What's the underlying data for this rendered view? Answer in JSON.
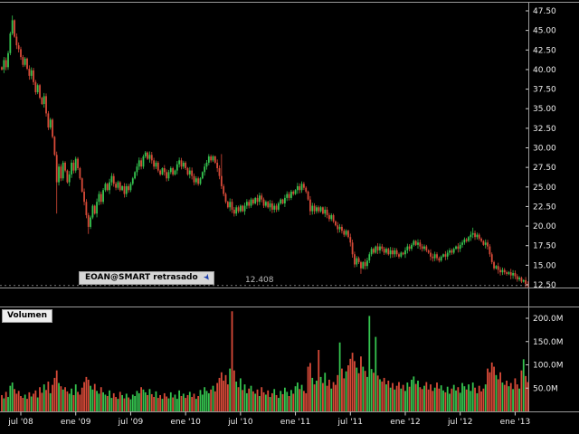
{
  "instrument": {
    "label": "EOAN@SMART retrasado"
  },
  "price_flag": {
    "value": "12.408"
  },
  "volume_panel": {
    "title": "Volumen"
  },
  "chart_data": {
    "type": "candlestick",
    "title": "EOAN@SMART retrasado",
    "subtitle_status": "retrasado",
    "last_price": 12.408,
    "open_first": 40.3,
    "legend_position": "bottom-left-of-price-panel",
    "grid": false,
    "price_axis": {
      "side": "right",
      "ticks": [
        47.5,
        45.0,
        42.5,
        40.0,
        37.5,
        35.0,
        32.5,
        30.0,
        27.5,
        25.0,
        22.5,
        20.0,
        17.5,
        15.0,
        12.5
      ],
      "range": [
        11.9,
        48.9
      ]
    },
    "volume_axis": {
      "side": "right",
      "ticks_millions": [
        200,
        150,
        100,
        50
      ],
      "range_millions": [
        0,
        220
      ]
    },
    "x_axis": {
      "ticks": [
        {
          "label": "jul '08",
          "week": 9
        },
        {
          "label": "ene '09",
          "week": 35
        },
        {
          "label": "jul '09",
          "week": 61
        },
        {
          "label": "ene '10",
          "week": 87
        },
        {
          "label": "jul '10",
          "week": 113
        },
        {
          "label": "ene '11",
          "week": 139
        },
        {
          "label": "jul '11",
          "week": 165
        },
        {
          "label": "ene '12",
          "week": 191
        },
        {
          "label": "jul '12",
          "week": 217
        },
        {
          "label": "ene '13",
          "week": 243
        }
      ]
    },
    "extremes": [
      {
        "week": 5,
        "high": 46.9
      },
      {
        "week": 26,
        "low": 21.6
      },
      {
        "week": 41,
        "low": 19.0
      },
      {
        "week": 104,
        "high": 29.2
      },
      {
        "week": 170,
        "low": 13.9
      },
      {
        "week": 223,
        "high": 19.8
      },
      {
        "week": 249,
        "low": 12.408
      }
    ],
    "weekly_closes": [
      40.0,
      41.2,
      40.3,
      42.1,
      44.6,
      46.3,
      44.2,
      43.1,
      42.6,
      41.6,
      40.6,
      41.4,
      40.1,
      39.2,
      39.9,
      38.4,
      37.1,
      38.0,
      36.4,
      35.6,
      36.6,
      34.4,
      32.6,
      33.6,
      31.4,
      29.1,
      25.6,
      27.6,
      26.1,
      28.1,
      27.1,
      25.6,
      26.6,
      28.1,
      27.1,
      28.6,
      27.4,
      26.1,
      24.4,
      23.1,
      21.4,
      19.9,
      21.1,
      22.6,
      21.6,
      23.1,
      24.1,
      23.1,
      24.6,
      25.4,
      24.6,
      25.6,
      26.4,
      25.4,
      24.9,
      25.6,
      24.6,
      25.1,
      24.1,
      25.1,
      24.6,
      25.4,
      26.1,
      26.9,
      27.6,
      28.4,
      27.6,
      28.9,
      29.4,
      28.6,
      29.1,
      28.4,
      27.6,
      28.1,
      27.1,
      26.6,
      27.4,
      26.9,
      26.1,
      26.9,
      27.4,
      26.6,
      27.1,
      27.9,
      28.4,
      27.6,
      28.1,
      27.4,
      26.6,
      27.1,
      26.4,
      25.6,
      26.1,
      25.4,
      26.1,
      26.9,
      27.6,
      28.1,
      28.9,
      28.4,
      28.9,
      28.1,
      27.4,
      26.4,
      25.1,
      24.1,
      23.1,
      22.4,
      23.1,
      22.1,
      21.6,
      22.4,
      21.9,
      22.6,
      21.9,
      22.6,
      23.1,
      22.6,
      23.4,
      22.9,
      23.6,
      23.1,
      23.9,
      23.4,
      22.6,
      23.1,
      22.4,
      22.9,
      22.1,
      22.6,
      22.1,
      22.9,
      23.4,
      22.9,
      23.6,
      24.1,
      23.6,
      24.4,
      24.1,
      24.6,
      25.1,
      24.6,
      25.4,
      24.9,
      24.4,
      23.4,
      21.9,
      22.6,
      21.9,
      22.4,
      21.9,
      22.4,
      21.6,
      22.1,
      21.4,
      20.9,
      21.4,
      20.6,
      20.1,
      19.6,
      19.9,
      19.4,
      18.9,
      19.4,
      18.6,
      17.9,
      16.4,
      15.1,
      15.9,
      15.4,
      14.6,
      15.4,
      14.9,
      15.6,
      16.4,
      17.1,
      16.6,
      17.4,
      16.9,
      17.4,
      17.1,
      16.6,
      17.1,
      16.4,
      16.9,
      16.4,
      16.9,
      16.4,
      16.1,
      16.6,
      16.4,
      16.9,
      17.4,
      17.1,
      17.6,
      18.1,
      17.6,
      17.9,
      17.4,
      17.1,
      17.4,
      16.9,
      16.6,
      16.1,
      15.9,
      16.4,
      15.9,
      15.6,
      16.1,
      16.4,
      16.1,
      16.6,
      16.9,
      16.6,
      17.1,
      17.4,
      17.1,
      17.6,
      17.9,
      18.3,
      18.1,
      18.6,
      18.9,
      19.1,
      18.6,
      18.9,
      18.4,
      18.1,
      17.6,
      17.9,
      17.4,
      16.4,
      15.4,
      14.6,
      14.9,
      14.4,
      14.1,
      14.4,
      14.1,
      13.9,
      14.1,
      13.7,
      14.0,
      13.6,
      13.2,
      13.4,
      12.9,
      13.1,
      12.6,
      12.41
    ],
    "weekly_volumes_millions": [
      35,
      28,
      42,
      31,
      55,
      62,
      48,
      38,
      44,
      33,
      29,
      36,
      27,
      41,
      32,
      38,
      45,
      30,
      52,
      40,
      58,
      46,
      64,
      39,
      57,
      72,
      88,
      61,
      54,
      47,
      52,
      43,
      38,
      49,
      35,
      58,
      42,
      36,
      51,
      63,
      74,
      68,
      55,
      47,
      59,
      44,
      38,
      52,
      41,
      36,
      33,
      45,
      29,
      39,
      31,
      27,
      42,
      35,
      28,
      38,
      30,
      26,
      36,
      33,
      44,
      39,
      52,
      47,
      41,
      35,
      48,
      37,
      31,
      43,
      29,
      35,
      27,
      39,
      32,
      28,
      41,
      30,
      36,
      27,
      45,
      33,
      38,
      29,
      35,
      42,
      31,
      38,
      27,
      33,
      46,
      36,
      52,
      44,
      39,
      47,
      55,
      43,
      61,
      72,
      84,
      66,
      78,
      58,
      92,
      215,
      88,
      64,
      52,
      71,
      46,
      58,
      39,
      49,
      55,
      43,
      38,
      47,
      33,
      52,
      41,
      36,
      45,
      31,
      39,
      48,
      35,
      29,
      44,
      37,
      51,
      42,
      33,
      46,
      38,
      54,
      62,
      48,
      57,
      44,
      39,
      96,
      104,
      72,
      58,
      66,
      132,
      74,
      61,
      83,
      55,
      68,
      49,
      63,
      57,
      78,
      148,
      92,
      71,
      86,
      99,
      113,
      126,
      108,
      94,
      82,
      118,
      96,
      87,
      74,
      205,
      91,
      83,
      160,
      77,
      69,
      64,
      72,
      58,
      66,
      51,
      61,
      47,
      55,
      63,
      49,
      57,
      44,
      62,
      53,
      68,
      75,
      59,
      66,
      52,
      48,
      55,
      63,
      47,
      58,
      44,
      51,
      62,
      49,
      56,
      45,
      41,
      53,
      38,
      49,
      57,
      45,
      52,
      40,
      61,
      54,
      47,
      58,
      44,
      62,
      51,
      39,
      55,
      43,
      49,
      58,
      92,
      84,
      105,
      96,
      78,
      69,
      84,
      62,
      57,
      66,
      54,
      61,
      48,
      71,
      58,
      49,
      88,
      112,
      76,
      63
    ],
    "colors": {
      "up": "#35c44f",
      "down": "#d84a38",
      "background": "#000000",
      "axis_text": "#ededed",
      "separator": "#9a9a9a",
      "tick": "#cccccc",
      "last_price_line": "#7a7a7a",
      "label_box_bg": "#d6d6d6",
      "cursor_icon": "#1d3fae"
    }
  }
}
